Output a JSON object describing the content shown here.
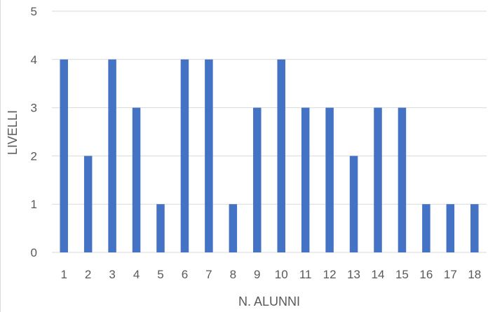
{
  "chart_data": {
    "type": "bar",
    "title": "",
    "xlabel": "N. ALUNNI",
    "ylabel": "LIVELLI",
    "categories": [
      "1",
      "2",
      "3",
      "4",
      "5",
      "6",
      "7",
      "8",
      "9",
      "10",
      "11",
      "12",
      "13",
      "14",
      "15",
      "16",
      "17",
      "18"
    ],
    "series": [
      {
        "values": [
          4,
          2,
          4,
          3,
          1,
          4,
          4,
          1,
          3,
          4,
          3,
          3,
          2,
          3,
          3,
          1,
          1,
          1
        ],
        "color": "#4472c4"
      }
    ],
    "ylim": [
      0,
      5
    ],
    "yticks": [
      0,
      1,
      2,
      3,
      4,
      5
    ],
    "grid": true,
    "legend": "none",
    "gridline_color": "#d9d9d9",
    "text_color": "#595959"
  }
}
